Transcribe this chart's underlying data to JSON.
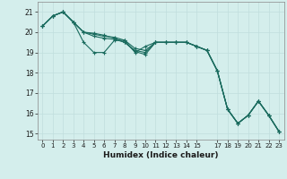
{
  "title": "",
  "xlabel": "Humidex (Indice chaleur)",
  "background_color": "#d4eeec",
  "grid_color": "#c0dedd",
  "line_color": "#1a6b5e",
  "xlim": [
    -0.5,
    23.5
  ],
  "ylim": [
    14.7,
    21.5
  ],
  "yticks": [
    15,
    16,
    17,
    18,
    19,
    20,
    21
  ],
  "xticks": [
    0,
    1,
    2,
    3,
    4,
    5,
    6,
    7,
    8,
    9,
    10,
    11,
    12,
    13,
    14,
    15,
    17,
    18,
    19,
    20,
    21,
    22,
    23
  ],
  "xtick_labels": [
    "0",
    "1",
    "2",
    "3",
    "4",
    "5",
    "6",
    "7",
    "8",
    "9",
    "10",
    "11",
    "12",
    "13",
    "14",
    "15",
    "17",
    "18",
    "19",
    "20",
    "21",
    "22",
    "23"
  ],
  "series": [
    [
      20.3,
      20.8,
      21.0,
      20.5,
      19.5,
      19.0,
      19.0,
      19.6,
      19.6,
      19.0,
      19.3,
      19.5,
      19.5,
      19.5,
      19.5,
      19.3,
      19.1,
      18.1,
      16.2,
      15.5,
      15.9,
      16.6,
      15.9,
      15.1
    ],
    [
      20.3,
      20.8,
      21.0,
      20.5,
      20.0,
      19.8,
      19.7,
      19.65,
      19.5,
      19.1,
      19.0,
      19.5,
      19.5,
      19.5,
      19.5,
      19.3,
      19.1,
      18.1,
      16.2,
      15.5,
      15.9,
      16.6,
      15.9,
      15.1
    ],
    [
      20.3,
      20.8,
      21.0,
      20.5,
      20.0,
      19.9,
      19.8,
      19.75,
      19.6,
      19.2,
      19.1,
      19.5,
      19.5,
      19.5,
      19.5,
      19.3,
      19.1,
      18.1,
      16.2,
      15.5,
      15.9,
      16.6,
      15.9,
      15.1
    ],
    [
      20.3,
      20.8,
      21.0,
      20.5,
      20.0,
      19.95,
      19.85,
      19.7,
      19.5,
      19.05,
      18.9,
      19.5,
      19.5,
      19.5,
      19.5,
      19.3,
      19.1,
      18.1,
      16.2,
      15.5,
      15.9,
      16.6,
      15.9,
      15.1
    ]
  ]
}
